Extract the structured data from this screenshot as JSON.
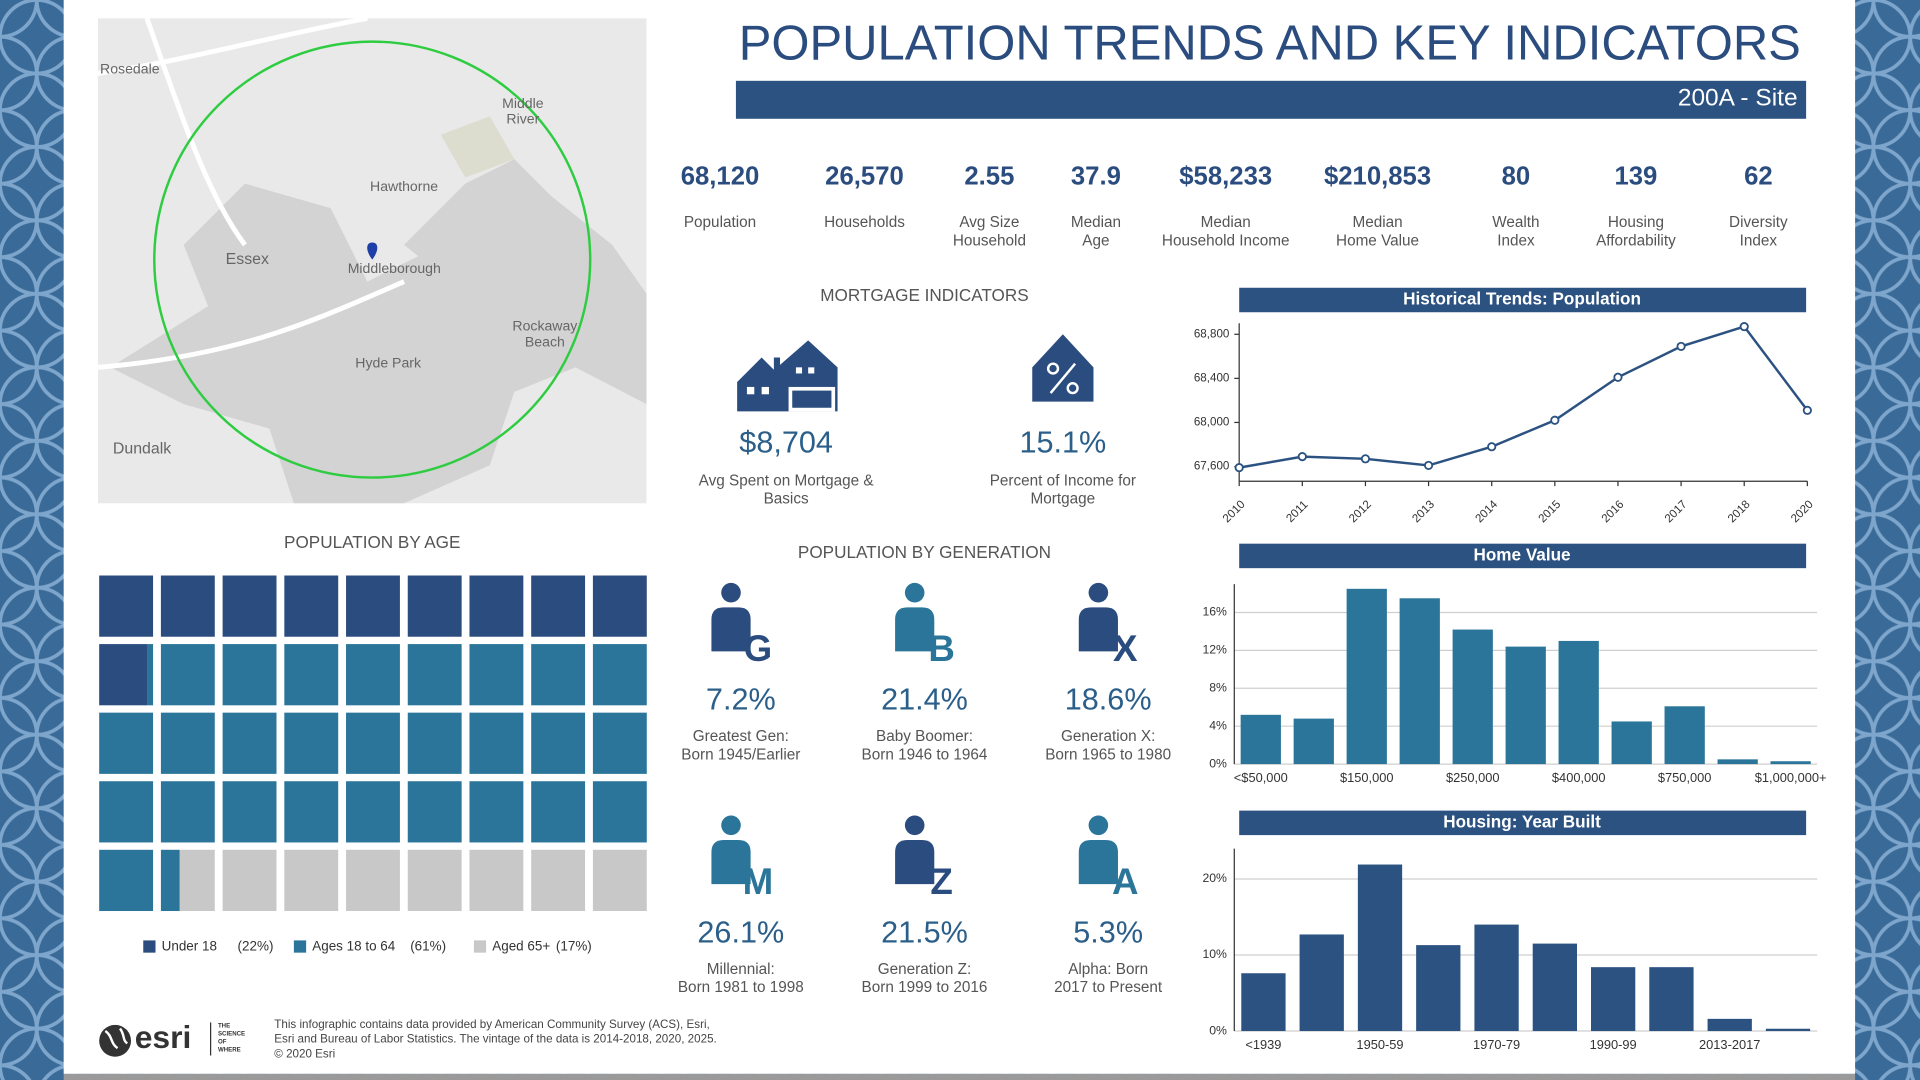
{
  "header": {
    "title": "POPULATION TRENDS AND KEY INDICATORS",
    "subtitle": "200A - Site"
  },
  "map": {
    "labels": [
      {
        "lines": [
          "Rosedale"
        ]
      },
      {
        "lines": [
          "Middle",
          "River"
        ]
      },
      {
        "lines": [
          "Hawthorne"
        ]
      },
      {
        "lines": [
          "Essex"
        ]
      },
      {
        "lines": [
          "Middleborough"
        ]
      },
      {
        "lines": [
          "Rockaway",
          "Beach"
        ]
      },
      {
        "lines": [
          "Hyde Park"
        ]
      },
      {
        "lines": [
          "Dundalk"
        ]
      }
    ]
  },
  "indicators": [
    {
      "value": "68,120",
      "lines": [
        "Population"
      ]
    },
    {
      "value": "26,570",
      "lines": [
        "Households"
      ]
    },
    {
      "value": "2.55",
      "lines": [
        "Avg Size",
        "Household"
      ]
    },
    {
      "value": "37.9",
      "lines": [
        "Median",
        "Age"
      ]
    },
    {
      "value": "$58,233",
      "lines": [
        "Median",
        "Household Income"
      ]
    },
    {
      "value": "$210,853",
      "lines": [
        "Median",
        "Home Value"
      ]
    },
    {
      "value": "80",
      "lines": [
        "Wealth",
        "Index"
      ]
    },
    {
      "value": "139",
      "lines": [
        "Housing",
        "Affordability"
      ]
    },
    {
      "value": "62",
      "lines": [
        "Diversity",
        "Index"
      ]
    }
  ],
  "mortgage": {
    "title": "MORTGAGE INDICATORS",
    "items": [
      {
        "value": "$8,704",
        "lines": [
          "Avg Spent on Mortgage &",
          "Basics"
        ]
      },
      {
        "value": "15.1%",
        "lines": [
          "Percent of Income for",
          "Mortgage"
        ]
      }
    ]
  },
  "generation": {
    "title": "POPULATION BY GENERATION",
    "items": [
      {
        "letter": "G",
        "value": "7.2%",
        "lines": [
          "Greatest Gen:",
          "Born 1945/Earlier"
        ]
      },
      {
        "letter": "B",
        "value": "21.4%",
        "lines": [
          "Baby Boomer:",
          "Born 1946 to 1964"
        ]
      },
      {
        "letter": "X",
        "value": "18.6%",
        "lines": [
          "Generation X:",
          "Born 1965 to 1980"
        ]
      },
      {
        "letter": "M",
        "value": "26.1%",
        "lines": [
          "Millennial:",
          "Born 1981 to 1998"
        ]
      },
      {
        "letter": "Z",
        "value": "21.5%",
        "lines": [
          "Generation Z:",
          "Born 1999 to 2016"
        ]
      },
      {
        "letter": "A",
        "value": "5.3%",
        "lines": [
          "Alpha:  Born",
          "2017 to Present"
        ]
      }
    ]
  },
  "footer": {
    "logo": "esri",
    "tagline": [
      "THE",
      "SCIENCE",
      "OF",
      "WHERE"
    ],
    "lines": [
      "This infographic contains data provided by American Community Survey (ACS), Esri,",
      "Esri and Bureau of Labor Statistics. The vintage of the data is 2014-2018, 2020, 2025.",
      "© 2020 Esri"
    ]
  },
  "chart_data": [
    {
      "type": "line",
      "title": "Historical Trends: Population",
      "color": "#2b5281",
      "categories": [
        "2010",
        "2011",
        "2012",
        "2013",
        "2014",
        "2015",
        "2016",
        "2017",
        "2018",
        "2020"
      ],
      "values": [
        67590,
        67690,
        67670,
        67610,
        67780,
        68020,
        68410,
        68690,
        68870,
        68110
      ],
      "ylim": [
        67500,
        68900
      ],
      "yticks": [
        {
          "value": 67600,
          "label": "67,600"
        },
        {
          "value": 68000,
          "label": "68,000"
        },
        {
          "value": 68400,
          "label": "68,400"
        },
        {
          "value": 68800,
          "label": "68,800"
        }
      ]
    },
    {
      "type": "bar",
      "title": "Home Value",
      "color": "#2a7599",
      "grid": true,
      "categories": [
        "<$50,000",
        null,
        "$150,000",
        null,
        "$250,000",
        null,
        "$400,000",
        null,
        "$750,000",
        null,
        "$1,000,000+"
      ],
      "values": [
        5.2,
        4.8,
        18.5,
        17.5,
        14.2,
        12.4,
        13.0,
        4.5,
        6.1,
        0.5,
        0.3
      ],
      "ylim": [
        0,
        19
      ],
      "yticks": [
        {
          "value": 0,
          "label": "0%"
        },
        {
          "value": 4,
          "label": "4%"
        },
        {
          "value": 8,
          "label": "8%"
        },
        {
          "value": 12,
          "label": "12%"
        },
        {
          "value": 16,
          "label": "16%"
        }
      ]
    },
    {
      "type": "bar",
      "title": "Housing: Year Built",
      "color": "#2b5281",
      "grid": true,
      "categories": [
        "<1939",
        null,
        "1950-59",
        null,
        "1970-79",
        null,
        "1990-99",
        null,
        "2013-2017",
        null
      ],
      "values": [
        7.6,
        12.7,
        21.9,
        11.3,
        14.0,
        11.5,
        8.4,
        8.4,
        1.6,
        0.3
      ],
      "ylim": [
        0,
        24
      ],
      "yticks": [
        {
          "value": 0,
          "label": "0%"
        },
        {
          "value": 10,
          "label": "10%"
        },
        {
          "value": 20,
          "label": "20%"
        }
      ]
    },
    {
      "type": "waffle",
      "title": "POPULATION BY AGE",
      "series": [
        {
          "name": "Under 18",
          "color": "#2b4c7e",
          "values": [
            22
          ],
          "value_labels": [
            "(22%)"
          ]
        },
        {
          "name": "Ages 18 to 64",
          "color": "#2a7599",
          "values": [
            61
          ],
          "value_labels": [
            "(61%)"
          ]
        },
        {
          "name": "Aged 65+",
          "color": "#c8c8c8",
          "values": [
            17
          ],
          "value_labels": [
            "(17%)"
          ]
        }
      ]
    }
  ]
}
